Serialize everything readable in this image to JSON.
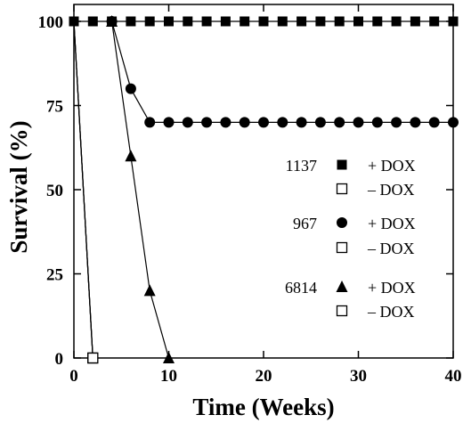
{
  "chart_data": {
    "type": "scatter",
    "xlabel": "Time (Weeks)",
    "ylabel": "Survival (%)",
    "xlim": [
      0,
      40
    ],
    "ylim": [
      0,
      105
    ],
    "xticks": [
      "0",
      "10",
      "20",
      "30",
      "40"
    ],
    "yticks": [
      "0",
      "25",
      "50",
      "75",
      "100"
    ],
    "xtick_values": [
      0,
      10,
      20,
      30,
      40
    ],
    "ytick_values": [
      0,
      25,
      50,
      75,
      100
    ],
    "series": [
      {
        "label": "1137",
        "condition": "+ DOX",
        "marker": "square-filled",
        "connected": true,
        "x": [
          0,
          2,
          4,
          6,
          8,
          10,
          12,
          14,
          16,
          18,
          20,
          22,
          24,
          26,
          28,
          30,
          32,
          34,
          36,
          38,
          40
        ],
        "y": [
          100,
          100,
          100,
          100,
          100,
          100,
          100,
          100,
          100,
          100,
          100,
          100,
          100,
          100,
          100,
          100,
          100,
          100,
          100,
          100,
          100
        ]
      },
      {
        "label": "1137",
        "condition": "– DOX",
        "marker": "square-open",
        "connected": true,
        "x": [
          0,
          2
        ],
        "y": [
          100,
          0
        ]
      },
      {
        "label": "967",
        "condition": "+ DOX",
        "marker": "circle-filled",
        "connected": true,
        "x": [
          4,
          6,
          8,
          10,
          12,
          14,
          16,
          18,
          20,
          22,
          24,
          26,
          28,
          30,
          32,
          34,
          36,
          38,
          40
        ],
        "y": [
          100,
          80,
          70,
          70,
          70,
          70,
          70,
          70,
          70,
          70,
          70,
          70,
          70,
          70,
          70,
          70,
          70,
          70,
          70
        ]
      },
      {
        "label": "967",
        "condition": "– DOX",
        "marker": "square-open",
        "connected": true,
        "x": [
          0,
          2
        ],
        "y": [
          100,
          0
        ]
      },
      {
        "label": "6814",
        "condition": "+ DOX",
        "marker": "triangle-filled",
        "connected": true,
        "x": [
          4,
          6,
          8,
          10
        ],
        "y": [
          100,
          60,
          20,
          0
        ]
      },
      {
        "label": "6814",
        "condition": "– DOX",
        "marker": "square-open",
        "connected": true,
        "x": [
          0,
          2
        ],
        "y": [
          100,
          0
        ]
      }
    ],
    "legend_groups": [
      {
        "label": "1137",
        "items": [
          {
            "marker": "square-filled",
            "text": "+ DOX"
          },
          {
            "marker": "square-open",
            "text": "– DOX"
          }
        ]
      },
      {
        "label": "967",
        "items": [
          {
            "marker": "circle-filled",
            "text": "+ DOX"
          },
          {
            "marker": "square-open",
            "text": "– DOX"
          }
        ]
      },
      {
        "label": "6814",
        "items": [
          {
            "marker": "triangle-filled",
            "text": "+ DOX"
          },
          {
            "marker": "square-open",
            "text": "– DOX"
          }
        ]
      }
    ],
    "legend_position": "right",
    "grid": false,
    "colors": {
      "marker": "#000000",
      "line": "#000000",
      "background": "#ffffff"
    }
  }
}
